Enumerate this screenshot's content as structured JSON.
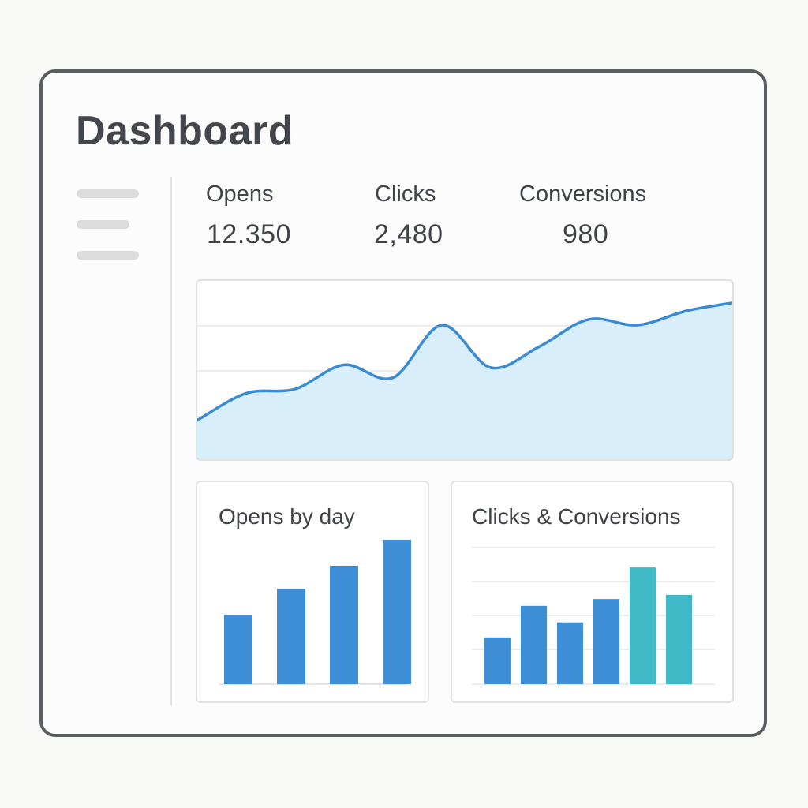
{
  "page": {
    "title": "Dashboard"
  },
  "sidebar": {
    "items": [
      {
        "icon": "menu-line"
      },
      {
        "icon": "menu-line"
      },
      {
        "icon": "menu-line"
      }
    ]
  },
  "stats": [
    {
      "label": "Opens",
      "value": "12.350"
    },
    {
      "label": "Clicks",
      "value": "2,480"
    },
    {
      "label": "Conversions",
      "value": "980"
    }
  ],
  "colors": {
    "line": "#3a8bd4",
    "area": "#d9eefb",
    "bar_blue": "#3f8fd6",
    "bar_teal": "#40b9c6",
    "grid": "#e3e6e9",
    "text": "#3f4348"
  },
  "chart_data": [
    {
      "type": "area",
      "title": "",
      "grid": true,
      "y_range": [
        0,
        100
      ],
      "x": [
        0,
        1,
        2,
        3,
        4,
        5,
        6,
        7,
        8,
        9,
        10,
        11
      ],
      "values": [
        13,
        32,
        35,
        52,
        43,
        80,
        50,
        65,
        84,
        80,
        90,
        96
      ]
    },
    {
      "type": "bar",
      "title": "Opens by day",
      "grid": false,
      "y_range": [
        0,
        100
      ],
      "values": [
        48,
        66,
        82,
        100
      ]
    },
    {
      "type": "bar",
      "title": "Clicks & Conversions",
      "grid": true,
      "y_range": [
        0,
        100
      ],
      "series": [
        {
          "values": [
            34,
            57,
            45,
            62
          ],
          "color": "#3f8fd6"
        },
        {
          "values": [
            85,
            65
          ],
          "color": "#40b9c6"
        }
      ]
    }
  ]
}
